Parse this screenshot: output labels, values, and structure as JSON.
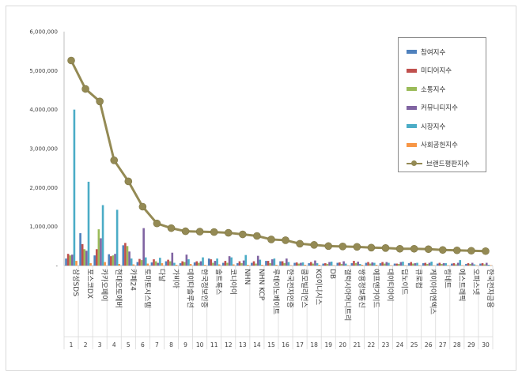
{
  "chart_data": {
    "type": "bar",
    "ylim": [
      0,
      6000000
    ],
    "yticks": [
      "-",
      "1,000,000",
      "2,000,000",
      "3,000,000",
      "4,000,000",
      "5,000,000",
      "6,000,000"
    ],
    "categories": [
      "삼성SDS",
      "포스코DX",
      "카카오페이",
      "현대오토에버",
      "카페24",
      "토마토시스템",
      "다날",
      "가비아",
      "데이타솔루션",
      "한국정보인증",
      "솔트룩스",
      "코나아이",
      "NHN",
      "NHN KCP",
      "루테이노베이트",
      "한국전자인증",
      "쿱모빌리언스",
      "KG이니시스",
      "DB",
      "갤럭시아머니트리",
      "쌍용정보통신",
      "에프엔가이드",
      "대아티아이",
      "딥노이드",
      "큐로컴",
      "케이아이엔엑스",
      "링네트",
      "에스트래픽",
      "오파스넷",
      "한국전자금융"
    ],
    "ranks": [
      "1",
      "2",
      "3",
      "4",
      "5",
      "6",
      "7",
      "8",
      "9",
      "10",
      "11",
      "12",
      "13",
      "14",
      "15",
      "16",
      "17",
      "18",
      "19",
      "20",
      "21",
      "22",
      "23",
      "24",
      "25",
      "26",
      "27",
      "28",
      "29",
      "30"
    ],
    "series": [
      {
        "name": "참여지수",
        "color": "#4f81bd",
        "values": [
          180000,
          830000,
          260000,
          290000,
          520000,
          90000,
          80000,
          110000,
          60000,
          80000,
          180000,
          70000,
          60000,
          70000,
          120000,
          110000,
          70000,
          60000,
          50000,
          70000,
          60000,
          70000,
          60000,
          50000,
          60000,
          60000,
          50000,
          50000,
          40000,
          50000
        ]
      },
      {
        "name": "미디어지수",
        "color": "#c0504d",
        "values": [
          300000,
          550000,
          420000,
          240000,
          580000,
          170000,
          160000,
          150000,
          110000,
          110000,
          160000,
          120000,
          110000,
          110000,
          120000,
          110000,
          80000,
          90000,
          60000,
          80000,
          120000,
          90000,
          90000,
          50000,
          90000,
          70000,
          70000,
          60000,
          60000,
          60000
        ]
      },
      {
        "name": "소통지수",
        "color": "#9bbb59",
        "values": [
          260000,
          420000,
          930000,
          260000,
          500000,
          140000,
          110000,
          110000,
          90000,
          70000,
          70000,
          70000,
          60000,
          50000,
          60000,
          60000,
          50000,
          50000,
          40000,
          40000,
          60000,
          50000,
          50000,
          40000,
          50000,
          40000,
          40000,
          30000,
          40000,
          30000
        ]
      },
      {
        "name": "커뮤니티지수",
        "color": "#8064a2",
        "values": [
          280000,
          380000,
          700000,
          300000,
          360000,
          960000,
          70000,
          330000,
          280000,
          110000,
          120000,
          240000,
          130000,
          250000,
          160000,
          180000,
          70000,
          130000,
          90000,
          110000,
          100000,
          80000,
          90000,
          90000,
          60000,
          70000,
          60000,
          70000,
          70000,
          70000
        ]
      },
      {
        "name": "시장지수",
        "color": "#4bacc6",
        "values": [
          4000000,
          2150000,
          1550000,
          1430000,
          180000,
          210000,
          200000,
          70000,
          160000,
          210000,
          180000,
          210000,
          270000,
          150000,
          180000,
          90000,
          80000,
          60000,
          100000,
          50000,
          40000,
          70000,
          70000,
          100000,
          70000,
          100000,
          60000,
          140000,
          30000,
          20000
        ]
      },
      {
        "name": "사회공헌지수",
        "color": "#f79646",
        "values": [
          120000,
          60000,
          90000,
          40000,
          30000,
          50000,
          60000,
          20000,
          40000,
          20000,
          30000,
          30000,
          20000,
          20000,
          20000,
          10000,
          20000,
          20000,
          10000,
          10000,
          20000,
          20000,
          10000,
          10000,
          10000,
          10000,
          10000,
          10000,
          10000,
          10000
        ]
      }
    ],
    "line": {
      "name": "브랜드평판지수",
      "color": "#948a54",
      "values": [
        5260000,
        4530000,
        4210000,
        2700000,
        2160000,
        1510000,
        1080000,
        960000,
        880000,
        870000,
        860000,
        840000,
        800000,
        760000,
        670000,
        650000,
        560000,
        530000,
        500000,
        490000,
        480000,
        460000,
        450000,
        430000,
        430000,
        420000,
        400000,
        390000,
        380000,
        370000
      ]
    }
  }
}
